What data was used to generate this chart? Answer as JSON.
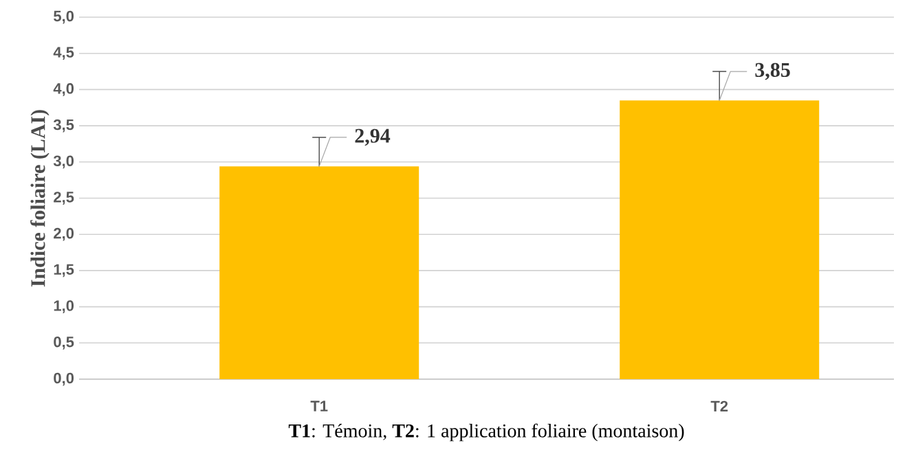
{
  "chart_data": {
    "type": "bar",
    "ylabel": "Indice foliaire (LAI)",
    "xlabel": "**T1**: Témoin, **T2**: 1 application foliaire (montaison)",
    "categories": [
      "T1",
      "T2"
    ],
    "values": [
      2.94,
      3.85
    ],
    "color": "#ffc000",
    "errors": [
      [
        2.94,
        3.34
      ],
      [
        3.85,
        4.25
      ]
    ],
    "value_labels": [
      "2,94",
      "3,85"
    ],
    "ylim": [
      0,
      5
    ],
    "yticks": [
      {
        "value": 0,
        "label": "0,0"
      },
      {
        "value": 0.5,
        "label": "0,5"
      },
      {
        "value": 1,
        "label": "1,0"
      },
      {
        "value": 1.5,
        "label": "1,5"
      },
      {
        "value": 2,
        "label": "2,0"
      },
      {
        "value": 2.5,
        "label": "2,5"
      },
      {
        "value": 3,
        "label": "3,0"
      },
      {
        "value": 3.5,
        "label": "3,5"
      },
      {
        "value": 4,
        "label": "4,0"
      },
      {
        "value": 4.5,
        "label": "4,5"
      },
      {
        "value": 5,
        "label": "5,0"
      }
    ],
    "grid": "y"
  }
}
